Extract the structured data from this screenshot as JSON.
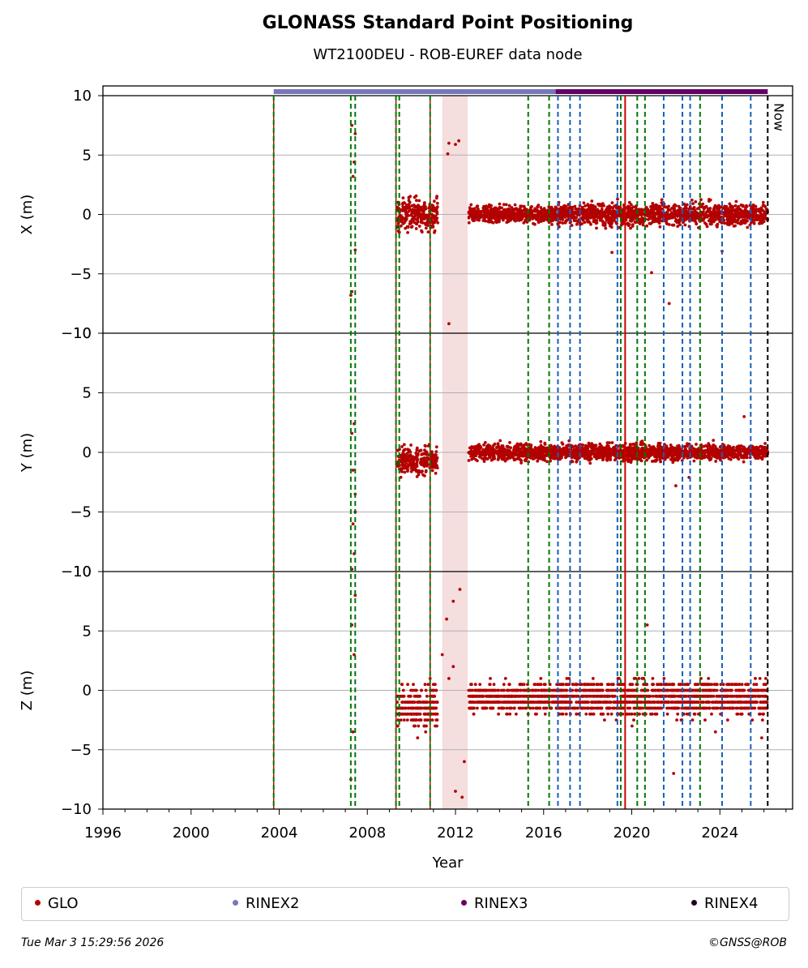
{
  "title": "GLONASS Standard Point Positioning",
  "subtitle": "WT2100DEU - ROB-EUREF data node",
  "footer": {
    "timestamp": "Tue Mar  3 15:29:56 2026",
    "credit": "©GNSS@ROB"
  },
  "legend": [
    {
      "label": "GLO",
      "color": "#b30000"
    },
    {
      "label": "RINEX2",
      "color": "#7777bb"
    },
    {
      "label": "RINEX3",
      "color": "#660066"
    },
    {
      "label": "RINEX4",
      "color": "#220022"
    }
  ],
  "chart_data": {
    "type": "scatter",
    "xlabel": "Year",
    "xlim": [
      1996,
      2027.3
    ],
    "x_ticks": [
      "1996",
      "2000",
      "2004",
      "2008",
      "2012",
      "2016",
      "2020",
      "2024"
    ],
    "now_label": "Now",
    "now_x": 2026.17,
    "panels": [
      {
        "ylabel": "X (m)",
        "ylim": [
          -10,
          10
        ],
        "y_ticks": [
          "−10",
          "−5",
          "0",
          "5",
          "10"
        ]
      },
      {
        "ylabel": "Y (m)",
        "ylim": [
          -10,
          10
        ],
        "y_ticks": [
          "−10",
          "−5",
          "0",
          "5",
          "10"
        ]
      },
      {
        "ylabel": "Z (m)",
        "ylim": [
          -10,
          10
        ],
        "y_ticks": [
          "−10",
          "−5",
          "0",
          "5",
          "10"
        ]
      }
    ],
    "rinex_bars": [
      {
        "series": "RINEX2",
        "from": 2003.75,
        "to": 2026.17
      },
      {
        "series": "RINEX3",
        "from": 2016.55,
        "to": 2026.17
      }
    ],
    "shaded_periods": [
      {
        "from": 2011.4,
        "to": 2012.55
      }
    ],
    "event_lines": [
      {
        "x": 2003.75,
        "kind": "green-red"
      },
      {
        "x": 2007.25,
        "kind": "green"
      },
      {
        "x": 2007.45,
        "kind": "green"
      },
      {
        "x": 2009.3,
        "kind": "green-red"
      },
      {
        "x": 2009.45,
        "kind": "green"
      },
      {
        "x": 2010.85,
        "kind": "green-red"
      },
      {
        "x": 2015.3,
        "kind": "green"
      },
      {
        "x": 2016.25,
        "kind": "green"
      },
      {
        "x": 2016.65,
        "kind": "blue"
      },
      {
        "x": 2017.2,
        "kind": "blue"
      },
      {
        "x": 2017.65,
        "kind": "blue"
      },
      {
        "x": 2019.35,
        "kind": "blue"
      },
      {
        "x": 2019.5,
        "kind": "green"
      },
      {
        "x": 2019.7,
        "kind": "red"
      },
      {
        "x": 2020.25,
        "kind": "green"
      },
      {
        "x": 2020.6,
        "kind": "green"
      },
      {
        "x": 2021.45,
        "kind": "blue"
      },
      {
        "x": 2022.3,
        "kind": "blue"
      },
      {
        "x": 2022.65,
        "kind": "blue"
      },
      {
        "x": 2023.1,
        "kind": "green"
      },
      {
        "x": 2024.1,
        "kind": "blue"
      },
      {
        "x": 2025.4,
        "kind": "blue"
      },
      {
        "x": 2026.17,
        "kind": "black"
      }
    ],
    "series": [
      {
        "name": "GLO",
        "color": "#b30000",
        "segments": [
          {
            "from": 2009.35,
            "to": 2011.2,
            "X": [
              0,
              1.2,
              3.5
            ],
            "Y": [
              -0.7,
              1.1,
              2.5
            ],
            "Z": [
              -1.2,
              1.5,
              3.5
            ]
          },
          {
            "from": 2012.6,
            "to": 2016.6,
            "X": [
              0,
              0.6,
              1.8
            ],
            "Y": [
              0,
              0.6,
              1.5
            ],
            "Z": [
              -0.5,
              0.9,
              1.5
            ]
          },
          {
            "from": 2016.6,
            "to": 2026.17,
            "X": [
              0,
              0.8,
              2.5
            ],
            "Y": [
              0,
              0.6,
              2.0
            ],
            "Z": [
              -0.5,
              1.2,
              2.5
            ]
          }
        ],
        "outliers": {
          "X": [
            [
              2007.3,
              7.5
            ],
            [
              2007.45,
              6.8
            ],
            [
              2007.4,
              4.4
            ],
            [
              2007.35,
              3.2
            ],
            [
              2007.3,
              -6.5
            ],
            [
              2007.45,
              -3.0
            ],
            [
              2007.25,
              -6.8
            ],
            [
              2011.7,
              6.0
            ],
            [
              2011.65,
              5.1
            ],
            [
              2012.0,
              5.9
            ],
            [
              2012.15,
              6.2
            ],
            [
              2011.7,
              -9.2
            ],
            [
              2021.7,
              -7.5
            ],
            [
              2020.9,
              -4.9
            ],
            [
              2019.1,
              -3.2
            ],
            [
              2024.1,
              -3.1
            ]
          ],
          "Y": [
            [
              2007.3,
              -9.8
            ],
            [
              2007.35,
              -1.5
            ],
            [
              2007.4,
              2.4
            ],
            [
              2007.3,
              1.6
            ],
            [
              2007.45,
              -5.0
            ],
            [
              2007.4,
              -8.5
            ],
            [
              2007.35,
              -6.0
            ],
            [
              2007.45,
              -3.5
            ],
            [
              2022.0,
              -2.8
            ],
            [
              2022.6,
              -2.1
            ],
            [
              2025.1,
              3.0
            ]
          ],
          "Z": [
            [
              2007.25,
              -7.5
            ],
            [
              2007.35,
              -3.5
            ],
            [
              2007.4,
              3.0
            ],
            [
              2007.45,
              8.0
            ],
            [
              2007.3,
              5.5
            ],
            [
              2011.4,
              3.0
            ],
            [
              2011.6,
              6.0
            ],
            [
              2011.9,
              7.5
            ],
            [
              2012.2,
              8.5
            ],
            [
              2012.0,
              -8.5
            ],
            [
              2012.4,
              -6.0
            ],
            [
              2011.9,
              2.0
            ],
            [
              2012.3,
              -9.0
            ],
            [
              2011.7,
              1.0
            ],
            [
              2020.7,
              5.5
            ],
            [
              2021.9,
              -7.0
            ],
            [
              2023.8,
              -3.5
            ],
            [
              2025.9,
              -4.0
            ]
          ]
        }
      }
    ]
  }
}
